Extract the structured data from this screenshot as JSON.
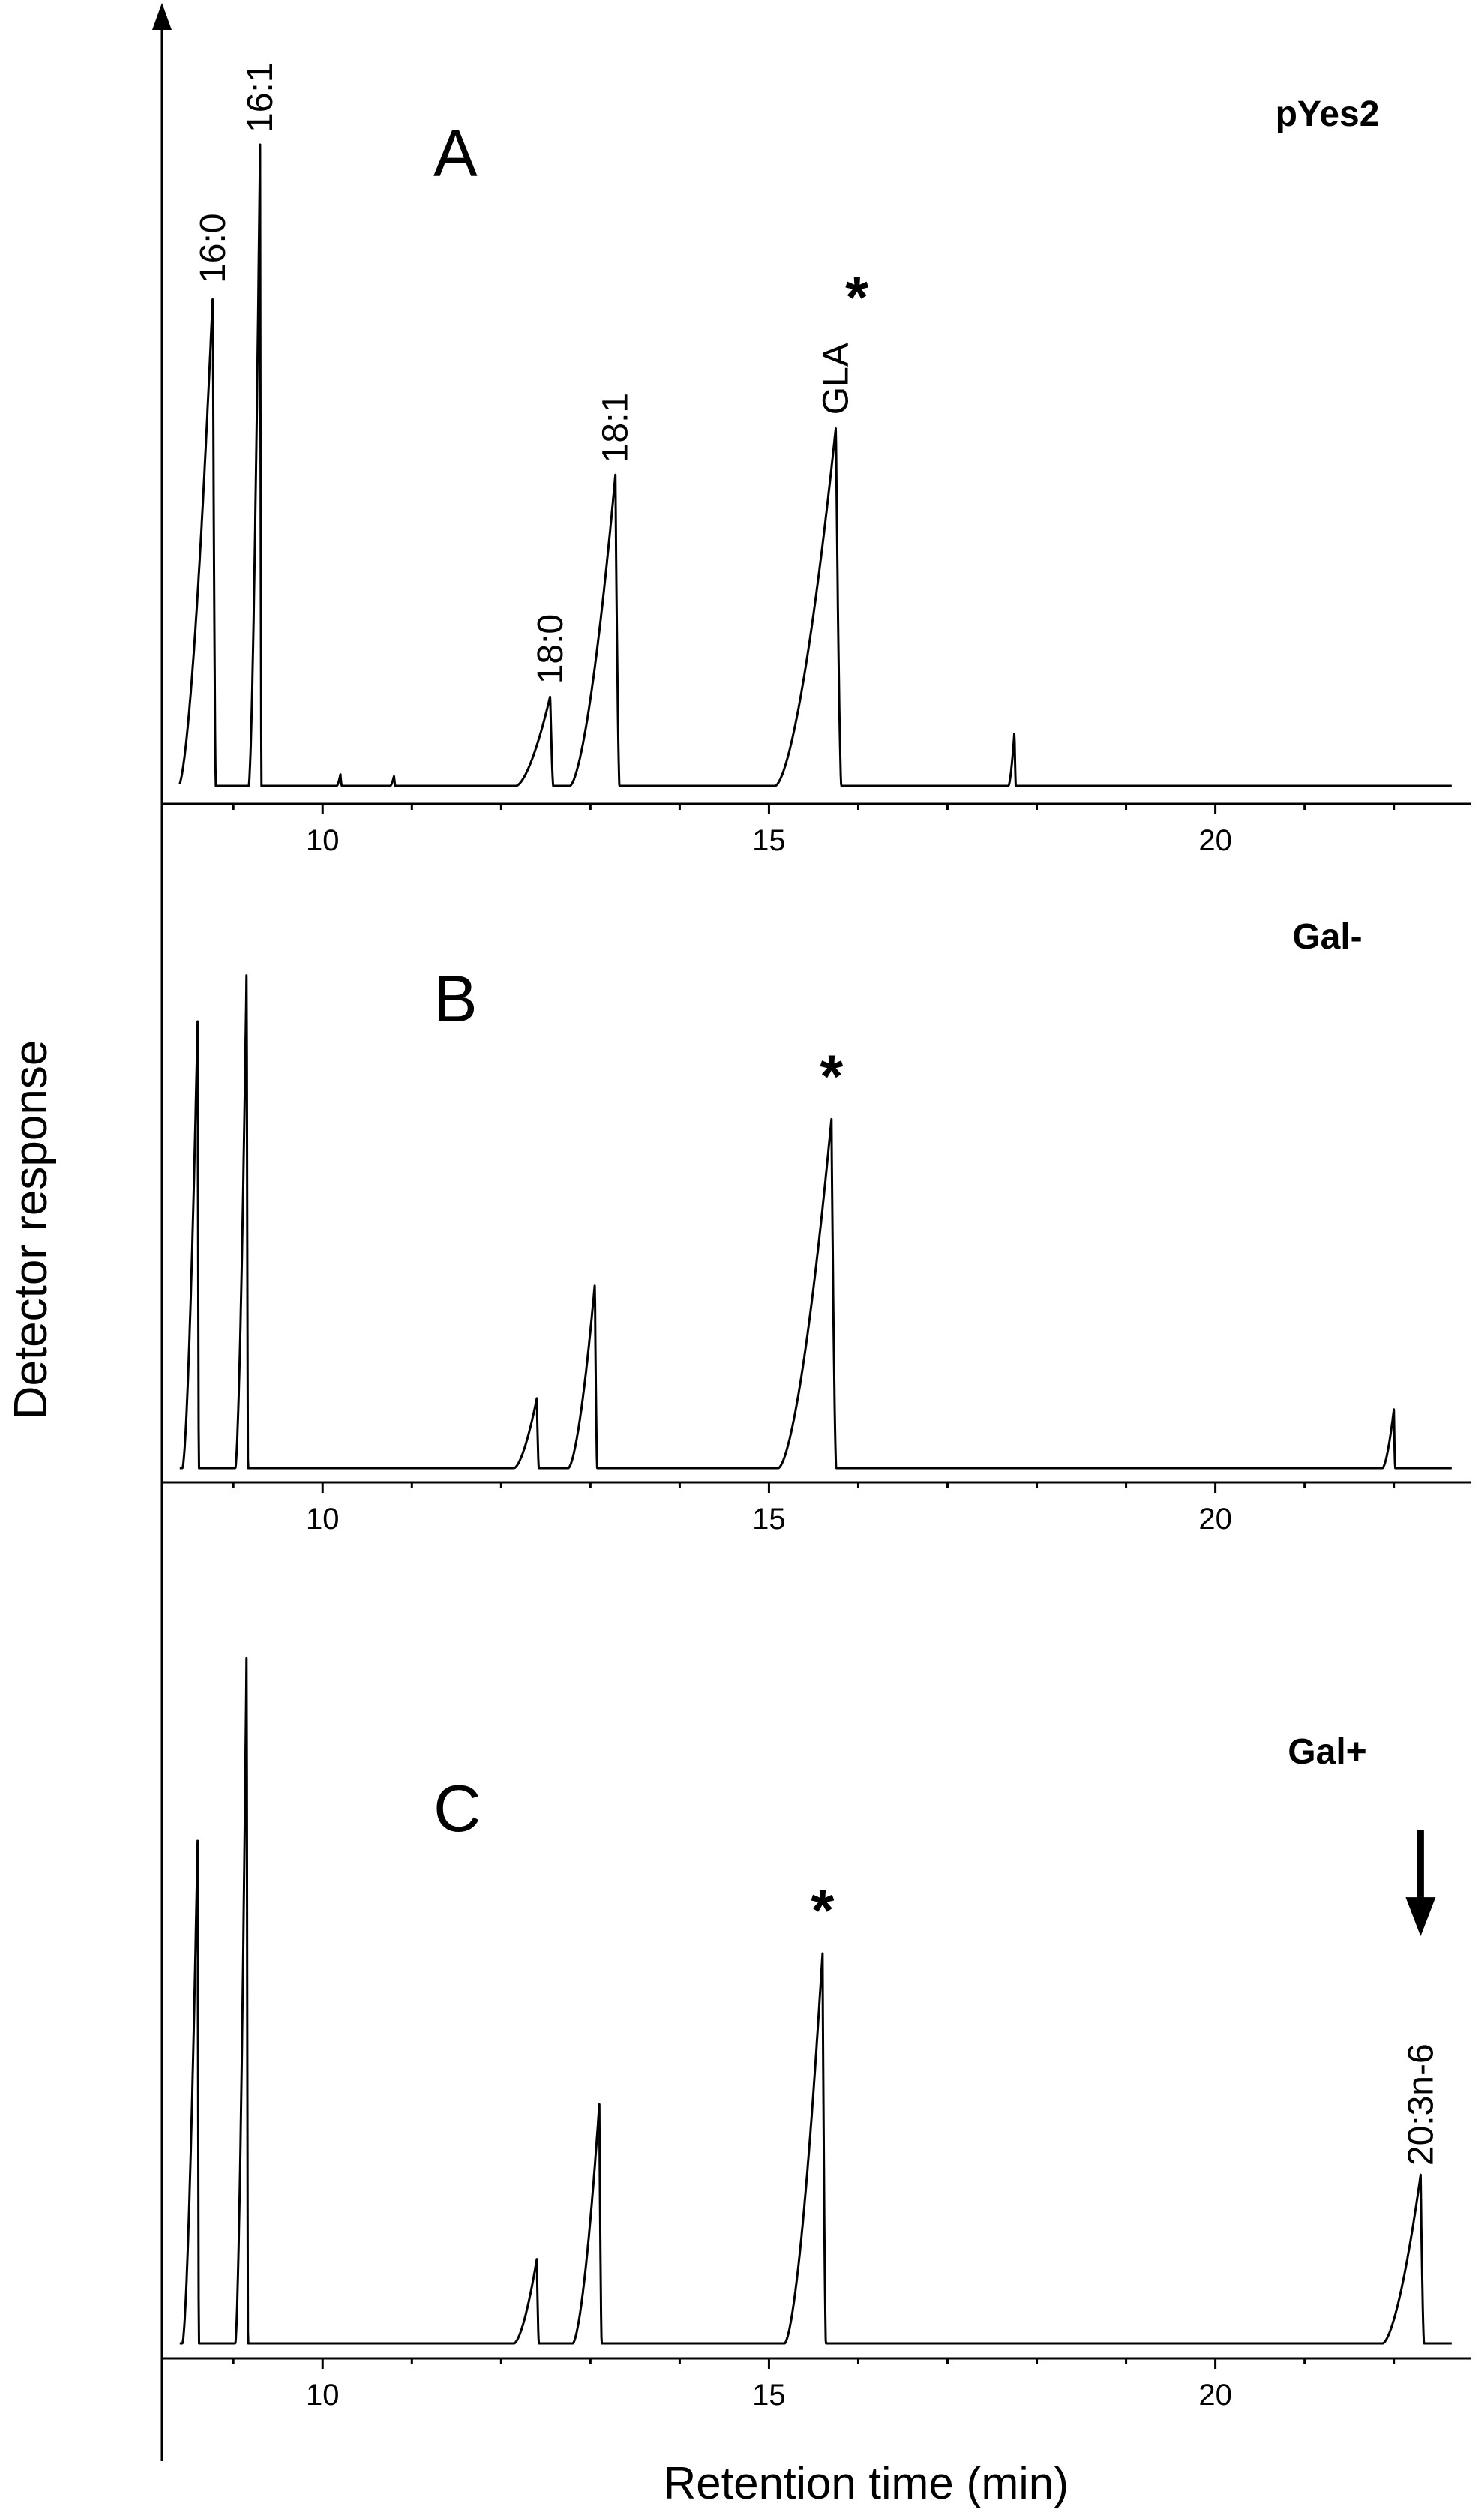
{
  "chart_data": {
    "type": "line",
    "ylabel": "Detector response",
    "xlabel": "Retention time (min)",
    "x_ticks": [
      10,
      15,
      20
    ],
    "xlim": [
      8.2,
      22.7
    ],
    "panels": [
      {
        "letter": "A",
        "name": "pYes2",
        "peaks": [
          {
            "rt": 8.77,
            "height": 0.765,
            "width": 0.45,
            "label": "16:0"
          },
          {
            "rt": 9.3,
            "height": 1.0,
            "width": 0.15,
            "label": "16:1"
          },
          {
            "rt": 10.2,
            "height": 0.018,
            "width": 0.05,
            "label": ""
          },
          {
            "rt": 10.8,
            "height": 0.015,
            "width": 0.05,
            "label": ""
          },
          {
            "rt": 12.55,
            "height": 0.14,
            "width": 0.45,
            "label": "18:0"
          },
          {
            "rt": 13.28,
            "height": 0.485,
            "width": 0.6,
            "label": "18:1"
          },
          {
            "rt": 15.75,
            "height": 0.56,
            "width": 0.8,
            "label": "GLA",
            "marker": "*"
          },
          {
            "rt": 17.75,
            "height": 0.085,
            "width": 0.08,
            "label": ""
          }
        ]
      },
      {
        "letter": "B",
        "name": "Gal-",
        "peaks": [
          {
            "rt": 8.6,
            "height": 0.8,
            "width": 0.2,
            "label": ""
          },
          {
            "rt": 9.15,
            "height": 0.905,
            "width": 0.15,
            "label": ""
          },
          {
            "rt": 12.4,
            "height": 0.125,
            "width": 0.3,
            "label": ""
          },
          {
            "rt": 13.05,
            "height": 0.33,
            "width": 0.35,
            "label": ""
          },
          {
            "rt": 15.7,
            "height": 0.625,
            "width": 0.7,
            "label": "",
            "marker": "*"
          },
          {
            "rt": 22.0,
            "height": 0.105,
            "width": 0.15,
            "label": ""
          }
        ]
      },
      {
        "letter": "C",
        "name": "Gal+",
        "peaks": [
          {
            "rt": 8.6,
            "height": 0.715,
            "width": 0.2,
            "label": ""
          },
          {
            "rt": 9.15,
            "height": 1.0,
            "width": 0.15,
            "label": ""
          },
          {
            "rt": 12.4,
            "height": 0.12,
            "width": 0.3,
            "label": ""
          },
          {
            "rt": 13.1,
            "height": 0.34,
            "width": 0.35,
            "label": ""
          },
          {
            "rt": 15.6,
            "height": 0.555,
            "width": 0.5,
            "label": "",
            "marker": "*"
          },
          {
            "rt": 22.3,
            "height": 0.24,
            "width": 0.5,
            "label": "20:3n-6",
            "marker": "arrow"
          }
        ]
      }
    ]
  }
}
